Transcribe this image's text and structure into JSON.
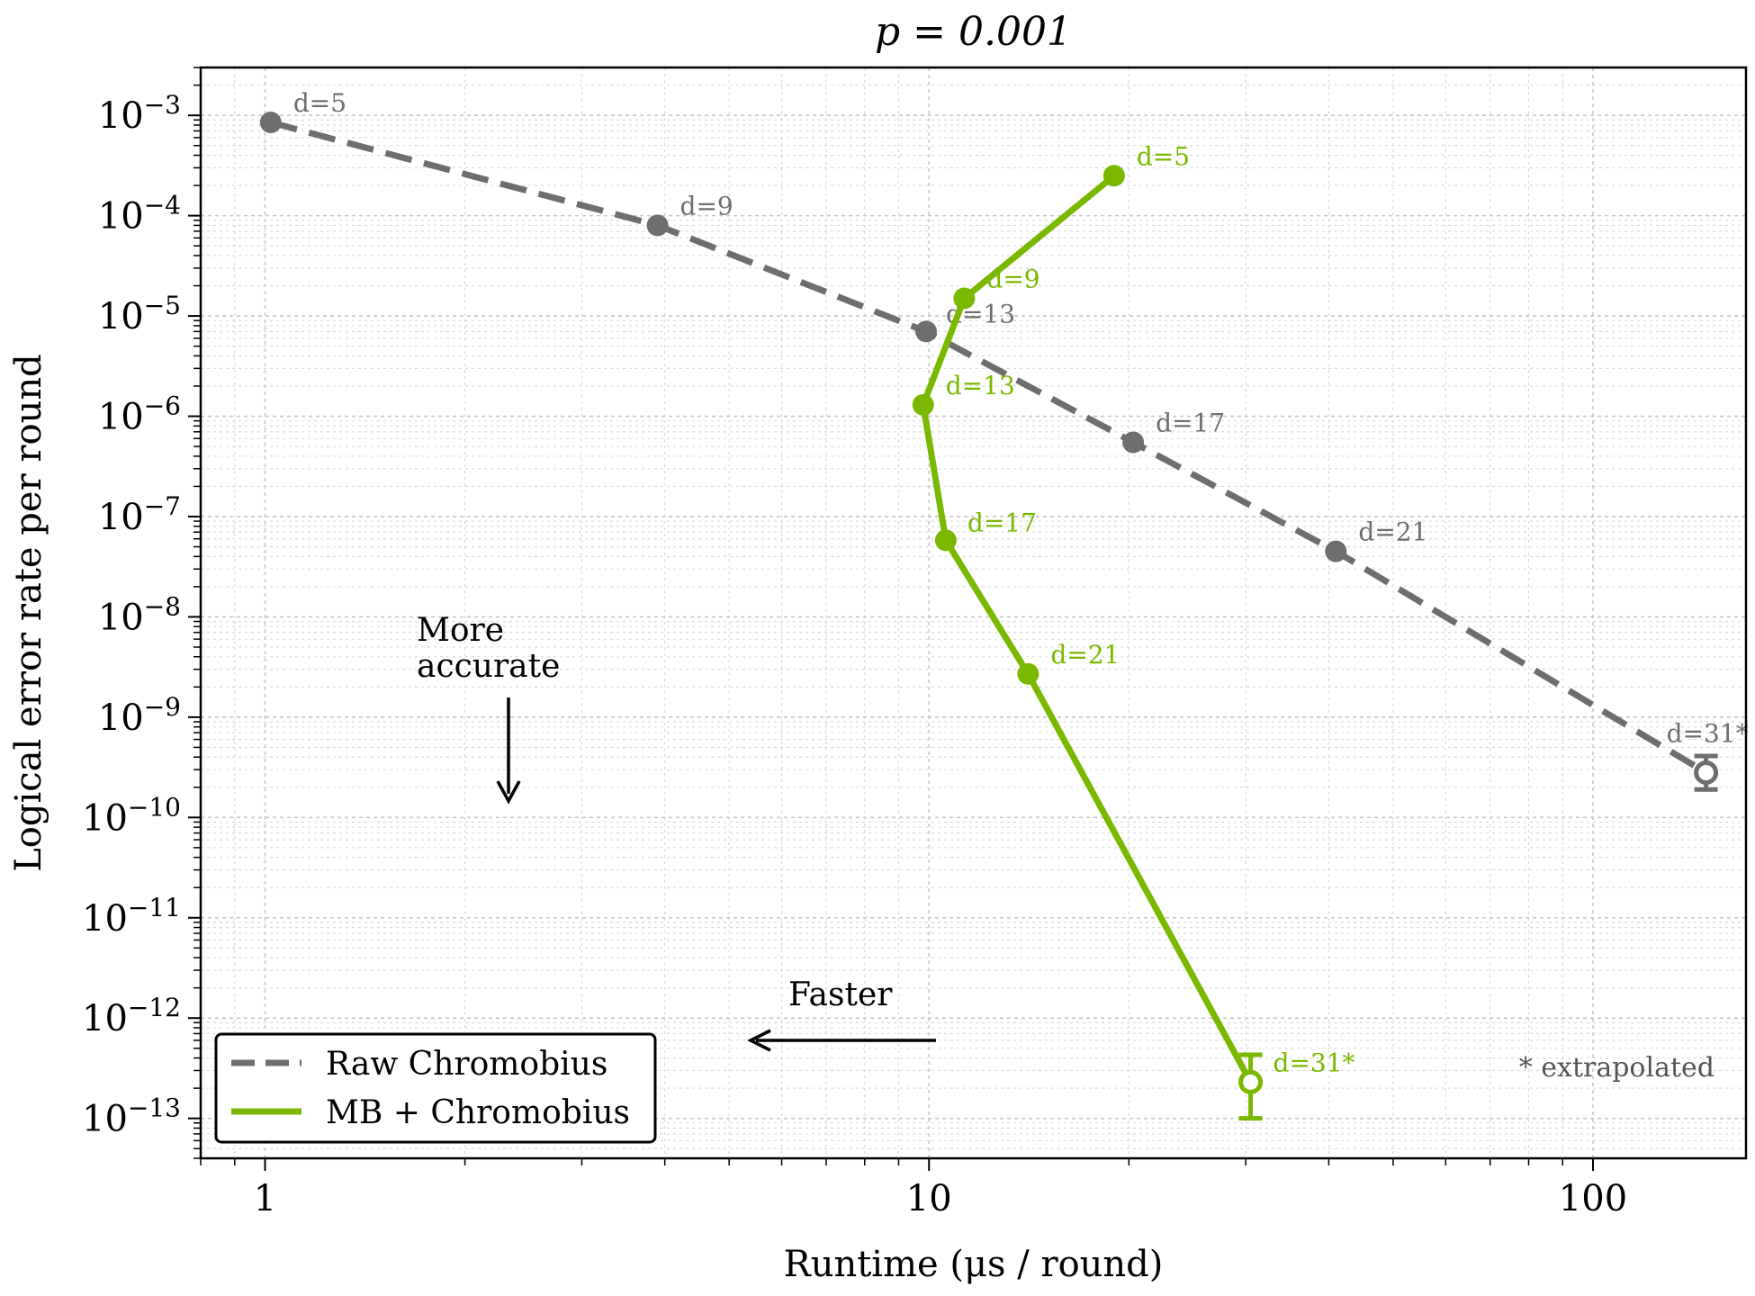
{
  "chart_data": {
    "type": "line",
    "title": "p = 0.001",
    "xlabel": "Runtime (μs / round)",
    "ylabel": "Logical error rate per round",
    "xscale": "log",
    "yscale": "log",
    "xlim": [
      0.8,
      170
    ],
    "ylim": [
      4e-14,
      0.003
    ],
    "x_ticks": [
      {
        "value": 1,
        "label": "1"
      },
      {
        "value": 10,
        "label": "10"
      },
      {
        "value": 100,
        "label": "100"
      }
    ],
    "y_ticks": [
      {
        "exp": -3,
        "base": "10",
        "sup": "−3"
      },
      {
        "exp": -4,
        "base": "10",
        "sup": "−4"
      },
      {
        "exp": -5,
        "base": "10",
        "sup": "−5"
      },
      {
        "exp": -6,
        "base": "10",
        "sup": "−6"
      },
      {
        "exp": -7,
        "base": "10",
        "sup": "−7"
      },
      {
        "exp": -8,
        "base": "10",
        "sup": "−8"
      },
      {
        "exp": -9,
        "base": "10",
        "sup": "−9"
      },
      {
        "exp": -10,
        "base": "10",
        "sup": "−10"
      },
      {
        "exp": -11,
        "base": "10",
        "sup": "−11"
      },
      {
        "exp": -12,
        "base": "10",
        "sup": "−12"
      },
      {
        "exp": -13,
        "base": "10",
        "sup": "−13"
      }
    ],
    "grid": true,
    "legend_position": "lower-left",
    "series": [
      {
        "name": "Raw Chromobius",
        "color": "#6e6e6e",
        "line_style": "dashed",
        "points": [
          {
            "x": 1.02,
            "y": 0.00085,
            "label": "d=5"
          },
          {
            "x": 3.9,
            "y": 8e-05,
            "label": "d=9"
          },
          {
            "x": 9.9,
            "y": 7e-06,
            "label": "d=13"
          },
          {
            "x": 20.3,
            "y": 5.5e-07,
            "label": "d=17"
          },
          {
            "x": 41,
            "y": 4.5e-08,
            "label": "d=21"
          },
          {
            "x": 148,
            "y": 2.8e-10,
            "label": "d=31*",
            "extrapolated": true,
            "err_low": 1.9e-10,
            "err_high": 4.1e-10
          }
        ]
      },
      {
        "name": "MB + Chromobius",
        "color": "#7ab800",
        "line_style": "solid",
        "points": [
          {
            "x": 19,
            "y": 0.00025,
            "label": "d=5"
          },
          {
            "x": 11.3,
            "y": 1.5e-05,
            "label": "d=9"
          },
          {
            "x": 9.8,
            "y": 1.3e-06,
            "label": "d=13"
          },
          {
            "x": 10.6,
            "y": 5.8e-08,
            "label": "d=17"
          },
          {
            "x": 14.1,
            "y": 2.7e-09,
            "label": "d=21"
          },
          {
            "x": 30.5,
            "y": 2.3e-13,
            "label": "d=31*",
            "extrapolated": true,
            "err_low": 1e-13,
            "err_high": 4.3e-13
          }
        ]
      }
    ],
    "annotations": {
      "more_accurate": [
        "More",
        "accurate"
      ],
      "faster": "Faster",
      "extrapolated_note": "* extrapolated"
    }
  }
}
